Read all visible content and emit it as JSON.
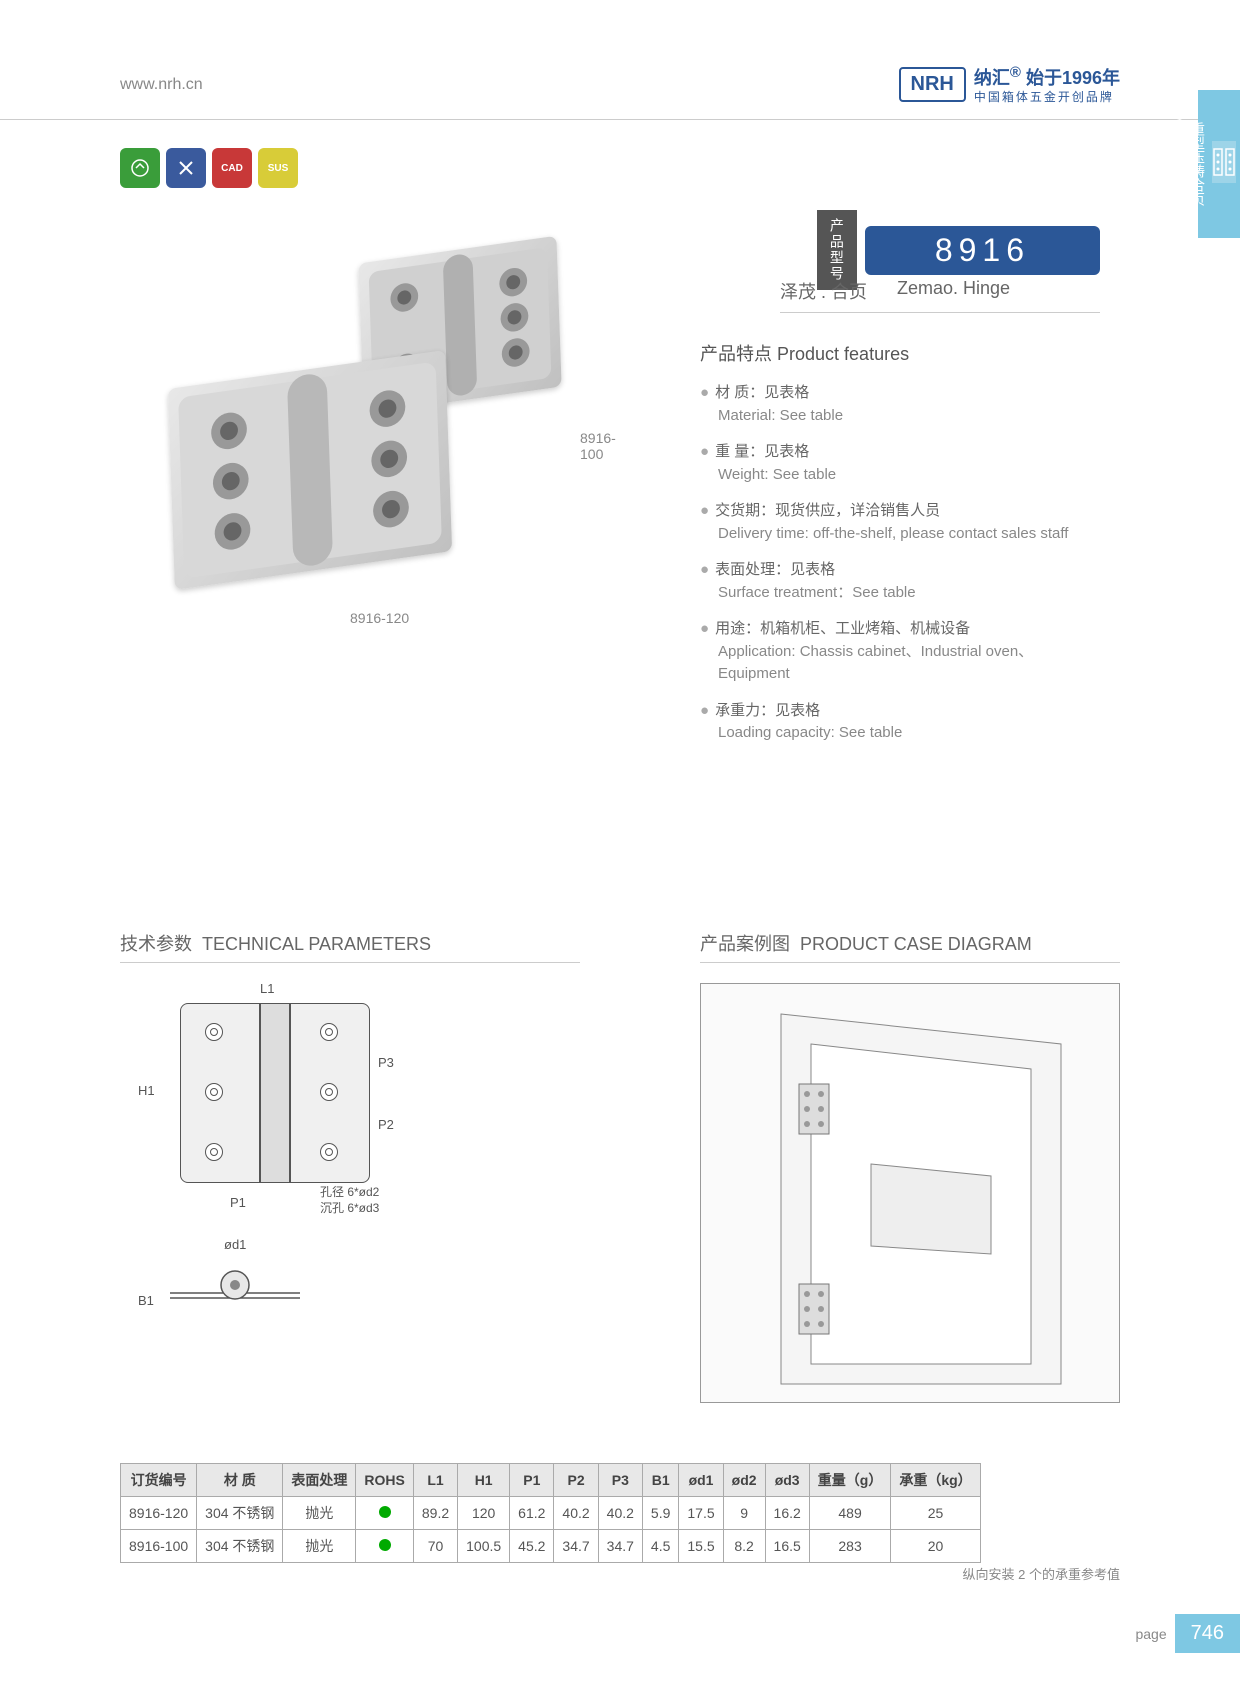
{
  "header": {
    "url": "www.nrh.cn",
    "logo": "NRH",
    "brand_cn": "纳汇",
    "brand_since": "始于1996年",
    "brand_sub": "中国箱体五金开创品牌"
  },
  "side_tab": {
    "cn": "重型压铸合页",
    "en": "Heavy duty die-casting hinge"
  },
  "icons": [
    {
      "bg": "#3a9d3a",
      "label": ""
    },
    {
      "bg": "#3a5a9d",
      "label": ""
    },
    {
      "bg": "#c83838",
      "label": "CAD"
    },
    {
      "bg": "#d8cc38",
      "label": "SUS"
    }
  ],
  "product": {
    "label": "产品型号",
    "number": "8916",
    "name_cn": "泽茂 . 合页",
    "name_en": "Zemao. Hinge"
  },
  "image_labels": {
    "l1": "8916-100",
    "l2": "8916-120"
  },
  "features": {
    "title_cn": "产品特点",
    "title_en": "Product features",
    "items": [
      {
        "cn": "材  质：见表格",
        "en": "Material: See table"
      },
      {
        "cn": "重  量：见表格",
        "en": "Weight: See table"
      },
      {
        "cn": "交货期：现货供应，详洽销售人员",
        "en": "Delivery time: off-the-shelf, please contact sales staff"
      },
      {
        "cn": "表面处理：见表格",
        "en": "Surface treatment：See table"
      },
      {
        "cn": "用途：机箱机柜、工业烤箱、机械设备",
        "en": "Application: Chassis cabinet、Industrial oven、Equipment"
      },
      {
        "cn": "承重力：见表格",
        "en": "Loading capacity: See table"
      }
    ]
  },
  "tech": {
    "title_cn": "技术参数",
    "title_en": "TECHNICAL PARAMETERS",
    "dims": {
      "L1": "L1",
      "H1": "H1",
      "P1": "P1",
      "P2": "P2",
      "P3": "P3",
      "B1": "B1",
      "od1": "ød1"
    },
    "hole_note1": "孔径 6*ød2",
    "hole_note2": "沉孔 6*ød3"
  },
  "case": {
    "title_cn": "产品案例图",
    "title_en": "PRODUCT CASE DIAGRAM"
  },
  "table": {
    "columns": [
      "订货编号",
      "材  质",
      "表面处理",
      "ROHS",
      "L1",
      "H1",
      "P1",
      "P2",
      "P3",
      "B1",
      "ød1",
      "ød2",
      "ød3",
      "重量（g）",
      "承重（kg）"
    ],
    "rows": [
      [
        "8916-120",
        "304 不锈钢",
        "抛光",
        "●",
        "89.2",
        "120",
        "61.2",
        "40.2",
        "40.2",
        "5.9",
        "17.5",
        "9",
        "16.2",
        "489",
        "25"
      ],
      [
        "8916-100",
        "304 不锈钢",
        "抛光",
        "●",
        "70",
        "100.5",
        "45.2",
        "34.7",
        "34.7",
        "4.5",
        "15.5",
        "8.2",
        "16.5",
        "283",
        "20"
      ]
    ],
    "note": "纵向安装 2 个的承重参考值"
  },
  "page": {
    "label": "page",
    "num": "746"
  }
}
